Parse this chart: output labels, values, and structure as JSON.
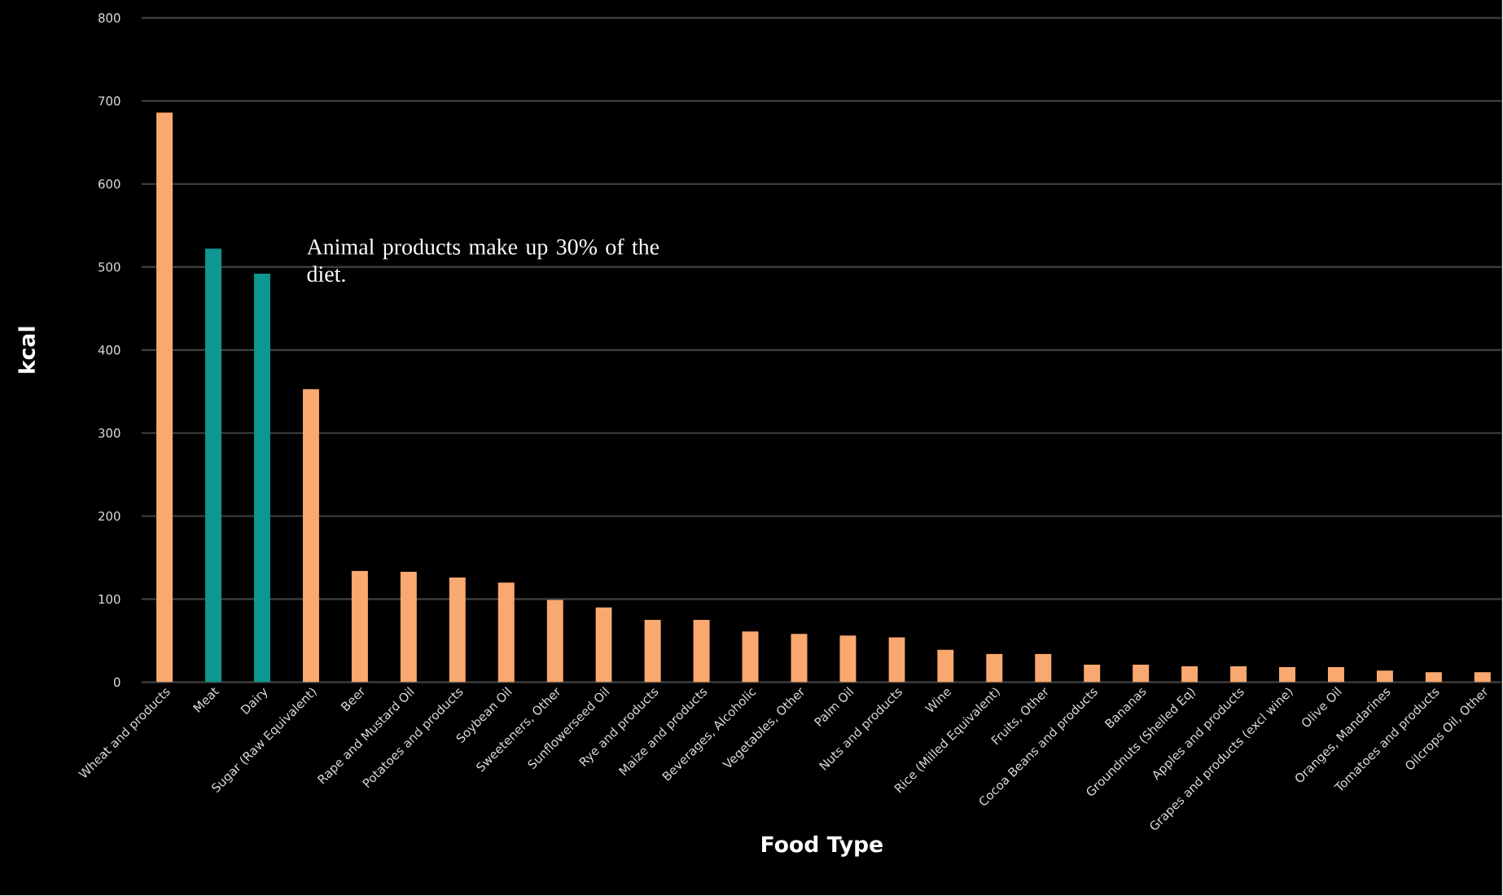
{
  "chart_data": {
    "type": "bar",
    "xlabel": "Food Type",
    "ylabel": "kcal",
    "annotations": [
      "Animal products make up 30% of the diet."
    ],
    "categories": [
      "Wheat and products",
      "Meat",
      "Dairy",
      "Sugar (Raw Equivalent)",
      "Beer",
      "Rape and Mustard Oil",
      "Potatoes and products",
      "Soybean Oil",
      "Sweeteners, Other",
      "Sunflowerseed Oil",
      "Rye and products",
      "Maize and products",
      "Beverages, Alcoholic",
      "Vegetables, Other",
      "Palm Oil",
      "Nuts and products",
      "Wine",
      "Rice (Milled Equivalent)",
      "Fruits, Other",
      "Cocoa Beans and products",
      "Bananas",
      "Groundnuts (Shelled Eq)",
      "Apples and products",
      "Grapes and products (excl wine)",
      "Olive Oil",
      "Oranges, Mandarines",
      "Tomatoes and products",
      "Oilcrops Oil, Other"
    ],
    "values": [
      686,
      522,
      492,
      353,
      134,
      133,
      126,
      120,
      99,
      90,
      75,
      75,
      61,
      58,
      56,
      54,
      39,
      34,
      34,
      21,
      21,
      19,
      19,
      18,
      18,
      14,
      12,
      12
    ],
    "colors": [
      "#f9a870",
      "#0e9690",
      "#0e9690",
      "#f9a870",
      "#f9a870",
      "#f9a870",
      "#f9a870",
      "#f9a870",
      "#f9a870",
      "#f9a870",
      "#f9a870",
      "#f9a870",
      "#f9a870",
      "#f9a870",
      "#f9a870",
      "#f9a870",
      "#f9a870",
      "#f9a870",
      "#f9a870",
      "#f9a870",
      "#f9a870",
      "#f9a870",
      "#f9a870",
      "#f9a870",
      "#f9a870",
      "#f9a870",
      "#f9a870",
      "#f9a870"
    ],
    "ylim": [
      0,
      800
    ],
    "yticks": [
      0,
      100,
      200,
      300,
      400,
      500,
      600,
      700,
      800
    ],
    "grid": "y"
  }
}
